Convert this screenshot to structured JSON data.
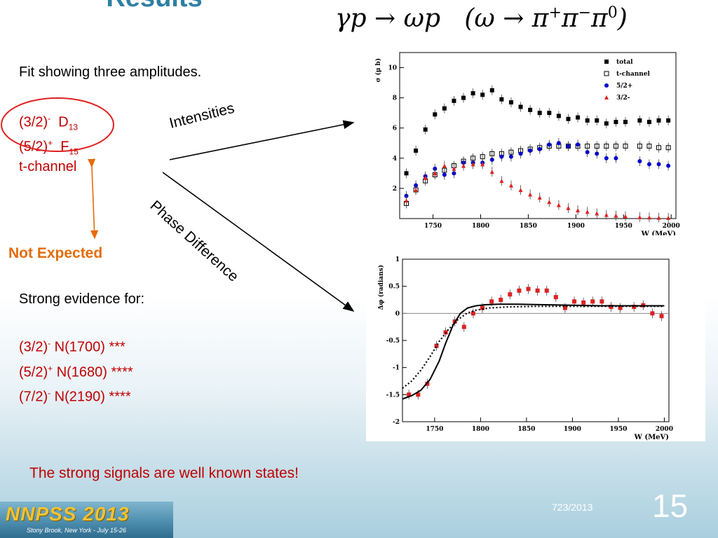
{
  "slide": {
    "title": "Results",
    "formula": {
      "lhs": "γp → ωp",
      "decay_open": "(ω → π",
      "sup1": "+",
      "pi2": "π",
      "sup2": "−",
      "pi3": "π",
      "sup3": "0",
      "decay_close": ")"
    },
    "fit_caption": "Fit showing three amplitudes.",
    "amplitudes": [
      {
        "state": "(3/2)",
        "sup": "-",
        "wave": "D",
        "sub": "13"
      },
      {
        "state": "(5/2)",
        "sup": "+",
        "wave": "F",
        "sub": "15"
      },
      {
        "state": "t-channel"
      }
    ],
    "not_expected": "Not Expected",
    "label_intensities": "Intensities",
    "label_phase": "Phase Difference",
    "evidence_heading": "Strong evidence for:",
    "evidence": [
      {
        "state": "(3/2)",
        "sup": "-",
        "text": " N(1700) ***"
      },
      {
        "state": "(5/2)",
        "sup": "+",
        "text": " N(1680) ****"
      },
      {
        "state": "(7/2)",
        "sup": "-",
        "text": " N(2190) ****"
      }
    ],
    "conclusion": "The strong signals are well known states!",
    "date": "723/2013",
    "slide_number": "15",
    "logo_text": "NNPSS 2013",
    "logo_subtext": "Stony Brook, New York - July 15-26"
  },
  "colors": {
    "title": "#2d7fa3",
    "red_text": "#c00000",
    "orange": "#e46c0a",
    "blue_points": "#0000cc",
    "red_points": "#dd2222"
  },
  "chart_data": [
    {
      "type": "scatter",
      "title": "",
      "xlabel": "W (MeV)",
      "ylabel": "σ (μ b)",
      "xlim": [
        1715,
        2005
      ],
      "ylim": [
        0,
        11
      ],
      "xticks": [
        1750,
        1800,
        1850,
        1900,
        1950,
        2000
      ],
      "yticks": [
        2,
        4,
        6,
        8,
        10
      ],
      "legend_position": "top-right",
      "series": [
        {
          "name": "total",
          "marker": "filled-square",
          "color": "#000000",
          "x": [
            1722,
            1732,
            1742,
            1752,
            1762,
            1772,
            1782,
            1792,
            1802,
            1812,
            1822,
            1832,
            1842,
            1852,
            1862,
            1872,
            1882,
            1892,
            1902,
            1912,
            1922,
            1932,
            1942,
            1952,
            1967,
            1977,
            1987,
            1997
          ],
          "y": [
            3.0,
            4.5,
            5.9,
            6.9,
            7.3,
            7.8,
            8.0,
            8.3,
            8.2,
            8.5,
            7.9,
            7.7,
            7.4,
            7.2,
            7.0,
            7.0,
            6.8,
            6.6,
            6.7,
            6.5,
            6.5,
            6.3,
            6.4,
            6.4,
            6.5,
            6.4,
            6.5,
            6.5
          ]
        },
        {
          "name": "t-channel",
          "marker": "open-square",
          "color": "#000000",
          "x": [
            1722,
            1732,
            1742,
            1752,
            1762,
            1772,
            1782,
            1792,
            1802,
            1812,
            1822,
            1832,
            1842,
            1852,
            1862,
            1872,
            1882,
            1892,
            1902,
            1912,
            1922,
            1932,
            1942,
            1952,
            1967,
            1977,
            1987,
            1997
          ],
          "y": [
            1.0,
            1.9,
            2.5,
            2.9,
            3.2,
            3.5,
            3.8,
            4.0,
            4.1,
            4.3,
            4.3,
            4.4,
            4.5,
            4.6,
            4.7,
            4.8,
            4.8,
            4.8,
            4.8,
            4.8,
            4.8,
            4.8,
            4.8,
            4.8,
            4.8,
            4.8,
            4.7,
            4.7
          ]
        },
        {
          "name": "5/2+",
          "marker": "filled-circle",
          "color": "#0000cc",
          "x": [
            1722,
            1732,
            1742,
            1752,
            1762,
            1772,
            1782,
            1792,
            1802,
            1812,
            1822,
            1832,
            1842,
            1852,
            1862,
            1872,
            1882,
            1892,
            1902,
            1912,
            1922,
            1932,
            1942,
            1967,
            1977,
            1987,
            1997
          ],
          "y": [
            1.5,
            2.2,
            2.8,
            3.3,
            2.9,
            3.0,
            3.7,
            3.7,
            3.7,
            3.9,
            4.1,
            4.1,
            4.3,
            4.5,
            4.6,
            4.9,
            5.0,
            4.8,
            4.9,
            4.4,
            4.3,
            4.0,
            4.0,
            3.8,
            3.6,
            3.6,
            3.5
          ]
        },
        {
          "name": "3/2-",
          "marker": "filled-triangle",
          "color": "#dd2222",
          "x": [
            1722,
            1732,
            1742,
            1752,
            1762,
            1772,
            1782,
            1792,
            1802,
            1812,
            1822,
            1832,
            1842,
            1852,
            1862,
            1872,
            1882,
            1892,
            1902,
            1912,
            1922,
            1932,
            1942,
            1952,
            1967,
            1977,
            1987,
            1997
          ],
          "y": [
            1.2,
            1.9,
            2.7,
            3.0,
            3.5,
            3.3,
            3.5,
            3.6,
            3.6,
            3.1,
            2.5,
            2.2,
            1.9,
            1.6,
            1.4,
            1.1,
            0.9,
            0.7,
            0.55,
            0.45,
            0.35,
            0.25,
            0.2,
            0.15,
            0.1,
            0.08,
            0.06,
            0.05
          ]
        }
      ]
    },
    {
      "type": "scatter",
      "title": "",
      "xlabel": "W (MeV)",
      "ylabel": "Δφ (radians)",
      "xlim": [
        1715,
        2005
      ],
      "ylim": [
        -2,
        1
      ],
      "xticks": [
        1750,
        1800,
        1850,
        1900,
        1950,
        2000
      ],
      "yticks": [
        -2,
        -1.5,
        -1,
        -0.5,
        0,
        0.5,
        1
      ],
      "reference_line": 0,
      "series": [
        {
          "name": "data",
          "marker": "filled-square",
          "color": "#dd2222",
          "x": [
            1722,
            1732,
            1742,
            1752,
            1762,
            1772,
            1782,
            1792,
            1802,
            1812,
            1822,
            1832,
            1842,
            1852,
            1862,
            1872,
            1882,
            1892,
            1902,
            1912,
            1922,
            1932,
            1942,
            1952,
            1967,
            1977,
            1987,
            1997
          ],
          "y": [
            -1.5,
            -1.5,
            -1.3,
            -0.6,
            -0.35,
            -0.15,
            -0.25,
            0.0,
            0.1,
            0.22,
            0.25,
            0.35,
            0.42,
            0.45,
            0.42,
            0.42,
            0.3,
            0.1,
            0.22,
            0.2,
            0.22,
            0.22,
            0.12,
            0.1,
            0.12,
            0.15,
            0.0,
            -0.05
          ]
        },
        {
          "name": "fit-solid",
          "style": "solid",
          "color": "#000000",
          "x": [
            1715,
            1725,
            1735,
            1745,
            1755,
            1762,
            1770,
            1778,
            1786,
            1795,
            1805,
            1820,
            1840,
            1870,
            1900,
            1930,
            1960,
            2000
          ],
          "y": [
            -1.58,
            -1.52,
            -1.42,
            -1.22,
            -0.88,
            -0.55,
            -0.22,
            0.0,
            0.1,
            0.14,
            0.16,
            0.17,
            0.17,
            0.16,
            0.15,
            0.14,
            0.14,
            0.14
          ]
        },
        {
          "name": "fit-dotted",
          "style": "dotted",
          "color": "#000000",
          "x": [
            1715,
            1725,
            1735,
            1745,
            1755,
            1765,
            1775,
            1785,
            1795,
            1810,
            1830,
            1860,
            1900,
            1950,
            2000
          ],
          "y": [
            -1.38,
            -1.25,
            -1.05,
            -0.8,
            -0.52,
            -0.3,
            -0.12,
            0.0,
            0.06,
            0.1,
            0.12,
            0.13,
            0.13,
            0.13,
            0.13
          ]
        }
      ]
    }
  ]
}
